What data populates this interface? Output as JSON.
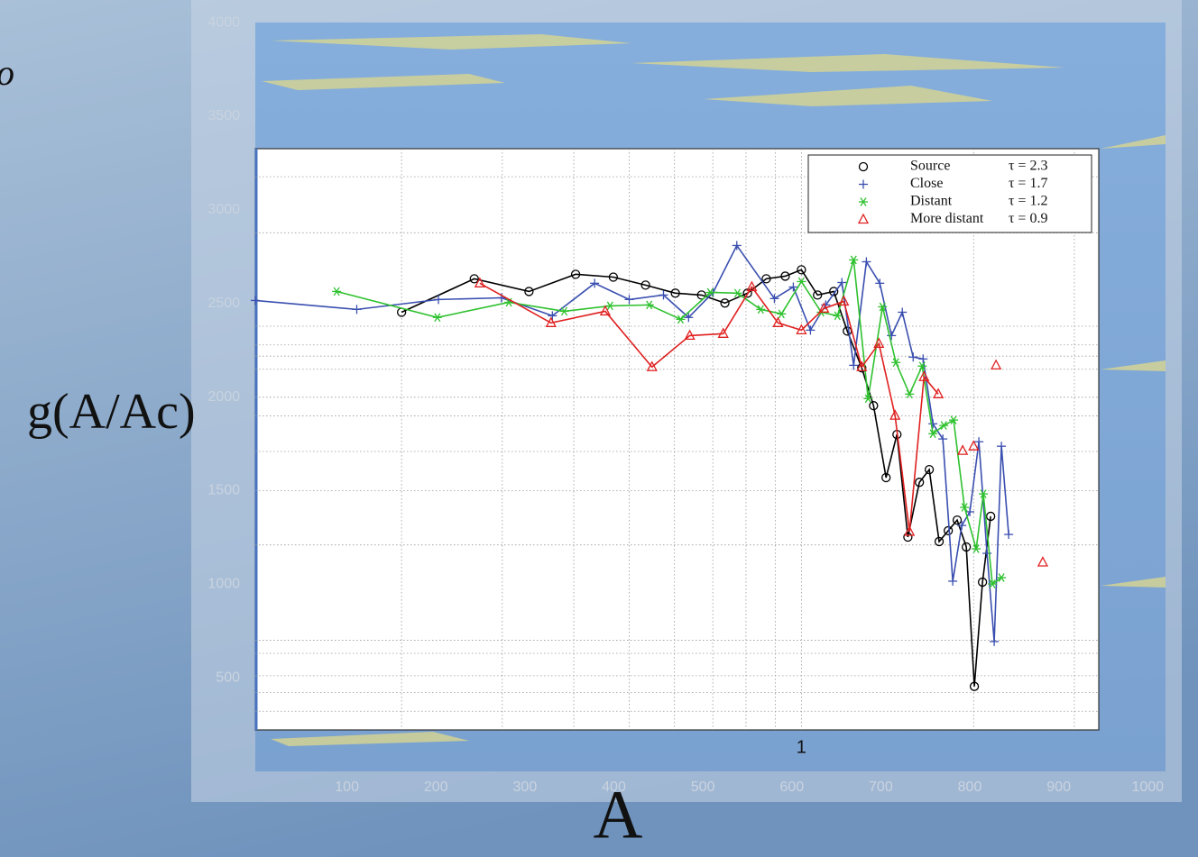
{
  "slide": {
    "corner_text": "o"
  },
  "chart_data": [
    {
      "type": "line",
      "xlabel": "A",
      "ylabel": "g(A/Ac)",
      "xlim": [
        0,
        1020
      ],
      "xticks": [
        100,
        200,
        300,
        400,
        500,
        600,
        700,
        800,
        900,
        1000
      ],
      "ylim": [
        0,
        4100
      ],
      "yticks": [
        500,
        1000,
        1500,
        2000,
        2500,
        3000,
        3500,
        4000
      ]
    },
    {
      "type": "line",
      "x_scale": "log",
      "xlim": [
        0.111,
        3.31
      ],
      "xticks": [
        1
      ],
      "x_minor_grid": [
        0.2,
        0.3,
        0.4,
        0.5,
        0.6,
        0.7,
        0.8,
        0.9,
        2,
        3
      ],
      "ylim": [
        220,
        3330
      ],
      "y_minor_grid": [
        3180,
        2880,
        2380,
        2280,
        2220,
        2150,
        2000,
        1900,
        1710,
        1500,
        1210,
        700,
        630,
        510,
        420,
        320
      ],
      "legend": "upper right",
      "series": [
        {
          "name": "Source",
          "legend_note": "τ  = 2.3",
          "color": "#000000",
          "marker": "circle",
          "x": [
            0.2,
            0.268,
            0.334,
            0.403,
            0.469,
            0.534,
            0.602,
            0.669,
            0.735,
            0.805,
            0.868,
            0.937,
            1.0,
            1.067,
            1.139,
            1.203,
            1.275,
            1.337,
            1.406,
            1.469,
            1.535,
            1.608,
            1.673,
            1.741,
            1.806,
            1.872,
            1.942,
            2.006,
            2.073,
            2.142
          ],
          "values": [
            2455,
            2634,
            2566,
            2658,
            2643,
            2600,
            2557,
            2547,
            2504,
            2557,
            2634,
            2648,
            2682,
            2547,
            2566,
            2354,
            2157,
            1955,
            1570,
            1801,
            1252,
            1545,
            1613,
            1228,
            1286,
            1343,
            1199,
            453,
            1011,
            1363
          ]
        },
        {
          "name": "Close",
          "legend_note": "τ  = 1.7",
          "color": "#3a4fb0",
          "marker": "plus",
          "x": [
            0.111,
            0.167,
            0.232,
            0.299,
            0.367,
            0.435,
            0.5,
            0.574,
            0.635,
            0.701,
            0.771,
            0.897,
            0.968,
            1.037,
            1.103,
            1.177,
            1.234,
            1.299,
            1.371,
            1.437,
            1.501,
            1.568,
            1.632,
            1.698,
            1.767,
            1.839,
            1.907,
            1.97,
            2.043,
            2.111,
            2.173,
            2.237,
            2.303
          ],
          "values": [
            2518,
            2470,
            2523,
            2532,
            2436,
            2610,
            2523,
            2547,
            2427,
            2561,
            2812,
            2528,
            2590,
            2359,
            2494,
            2614,
            2171,
            2725,
            2610,
            2330,
            2455,
            2215,
            2205,
            1858,
            1777,
            1016,
            1314,
            1387,
            1762,
            1165,
            693,
            1738,
            1266
          ]
        },
        {
          "name": "Distant",
          "legend_note": "τ  = 1.2",
          "color": "#2fc12f",
          "marker": "asterisk",
          "x": [
            0.154,
            0.231,
            0.308,
            0.385,
            0.463,
            0.542,
            0.615,
            0.693,
            0.773,
            0.849,
            0.923,
            1.0,
            1.083,
            1.156,
            1.234,
            1.308,
            1.386,
            1.463,
            1.545,
            1.626,
            1.698,
            1.774,
            1.845,
            1.928,
            2.021,
            2.08,
            2.157,
            2.237
          ],
          "values": [
            2566,
            2427,
            2508,
            2460,
            2489,
            2494,
            2417,
            2561,
            2557,
            2470,
            2446,
            2619,
            2455,
            2436,
            2735,
            1993,
            2484,
            2186,
            2017,
            2167,
            1805,
            1849,
            1878,
            1411,
            1189,
            1483,
            1001,
            1035
          ]
        },
        {
          "name": "More distant",
          "legend_note": "τ  = 0.9",
          "color": "#e02020",
          "marker": "triangle",
          "x": [
            0.274,
            0.365,
            0.454,
            0.548,
            0.638,
            0.73,
            0.819,
            0.91,
            1.0,
            1.095,
            1.186,
            1.275,
            1.366,
            1.458,
            1.545,
            1.638,
            1.735,
            null,
            1.914,
            null,
            2.0,
            null,
            2.189,
            null,
            2.642
          ],
          "values": [
            2610,
            2398,
            2460,
            2162,
            2330,
            2340,
            2590,
            2398,
            2359,
            2475,
            2513,
            2162,
            2287,
            1902,
            1281,
            2109,
            2017,
            null,
            1714,
            null,
            1738,
            null,
            2171,
            null,
            1117
          ]
        }
      ]
    }
  ]
}
